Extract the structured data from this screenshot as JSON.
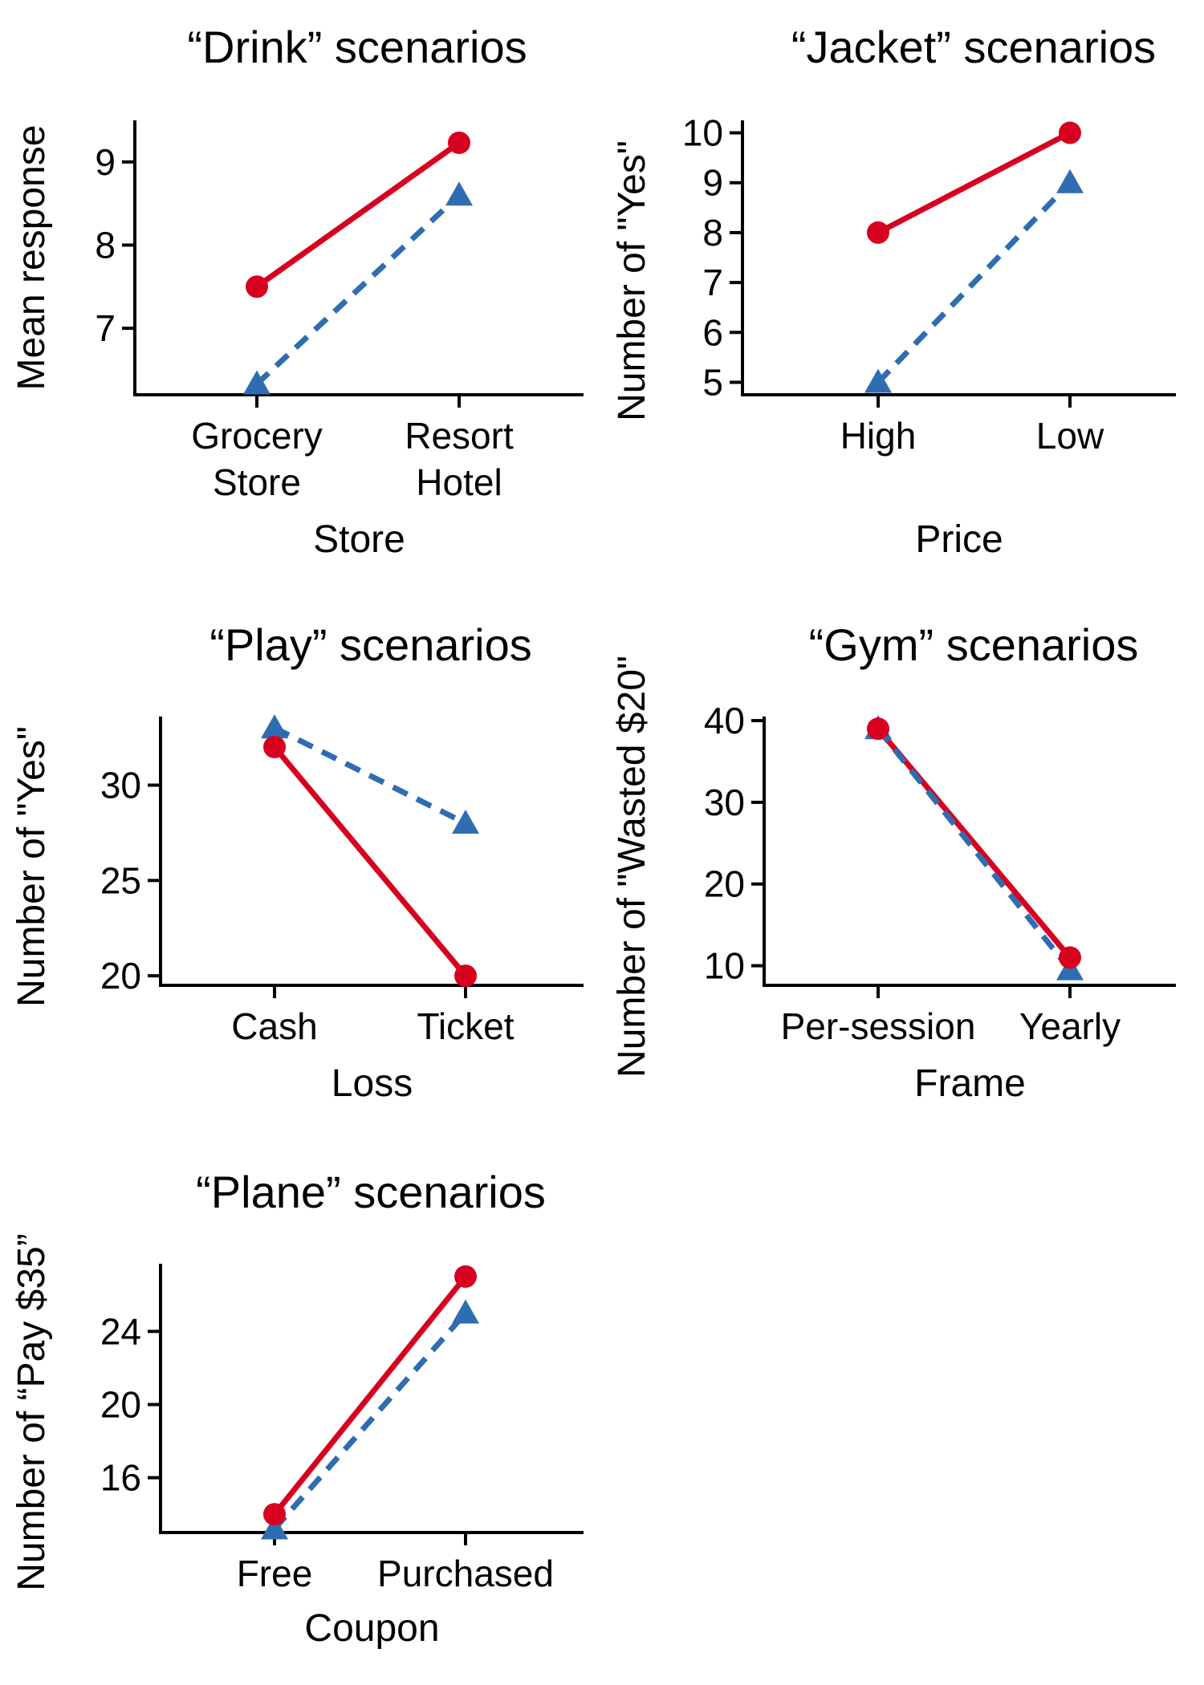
{
  "colors": {
    "series_1": "#d7001f",
    "series_2": "#2f6db3"
  },
  "chart_data": [
    {
      "type": "line",
      "title": "“Drink” scenarios",
      "xlabel": "Store",
      "ylabel": "Mean response",
      "categories": [
        [
          "Grocery",
          "Store"
        ],
        [
          "Resort",
          "Hotel"
        ]
      ],
      "ylim": [
        6.2,
        9.5
      ],
      "yticks": [
        7,
        8,
        9
      ],
      "grid": false,
      "series": [
        {
          "marker": "circle",
          "line": "solid",
          "values": [
            7.5,
            9.23
          ]
        },
        {
          "marker": "triangle",
          "line": "dashed",
          "values": [
            6.33,
            8.6
          ]
        }
      ]
    },
    {
      "type": "line",
      "title": "“Jacket” scenarios",
      "xlabel": "Price",
      "ylabel": "Number of \"Yes\"",
      "categories": [
        [
          "High"
        ],
        [
          "Low"
        ]
      ],
      "ylim": [
        4.75,
        10.25
      ],
      "yticks": [
        5,
        6,
        7,
        8,
        9,
        10
      ],
      "grid": false,
      "series": [
        {
          "marker": "circle",
          "line": "solid",
          "values": [
            8,
            10
          ]
        },
        {
          "marker": "triangle",
          "line": "dashed",
          "values": [
            5,
            9
          ]
        }
      ]
    },
    {
      "type": "line",
      "title": "“Play” scenarios",
      "xlabel": "Loss",
      "ylabel": "Number of \"Yes\"",
      "categories": [
        [
          "Cash"
        ],
        [
          "Ticket"
        ]
      ],
      "ylim": [
        19.5,
        33.6
      ],
      "yticks": [
        20,
        25,
        30
      ],
      "grid": false,
      "series": [
        {
          "marker": "circle",
          "line": "solid",
          "values": [
            32,
            20
          ]
        },
        {
          "marker": "triangle",
          "line": "dashed",
          "values": [
            33,
            28
          ]
        }
      ]
    },
    {
      "type": "line",
      "title": "“Gym” scenarios",
      "xlabel": "Frame",
      "ylabel": "Number of \"Wasted $20\"",
      "categories": [
        [
          "Per-session"
        ],
        [
          "Yearly"
        ]
      ],
      "ylim": [
        7.6,
        40.5
      ],
      "yticks": [
        10,
        20,
        30,
        40
      ],
      "grid": false,
      "series": [
        {
          "marker": "circle",
          "line": "solid",
          "values": [
            39,
            11
          ]
        },
        {
          "marker": "triangle",
          "line": "dashed",
          "values": [
            39,
            9.5
          ]
        }
      ]
    },
    {
      "type": "line",
      "title": "“Plane” scenarios",
      "xlabel": "Coupon",
      "ylabel": "Number of “Pay $35”",
      "categories": [
        [
          "Free"
        ],
        [
          "Purchased"
        ]
      ],
      "ylim": [
        13,
        27.7
      ],
      "yticks": [
        16,
        20,
        24
      ],
      "grid": false,
      "series": [
        {
          "marker": "circle",
          "line": "solid",
          "values": [
            14,
            27
          ]
        },
        {
          "marker": "triangle",
          "line": "dashed",
          "values": [
            13.2,
            25
          ]
        }
      ]
    }
  ]
}
